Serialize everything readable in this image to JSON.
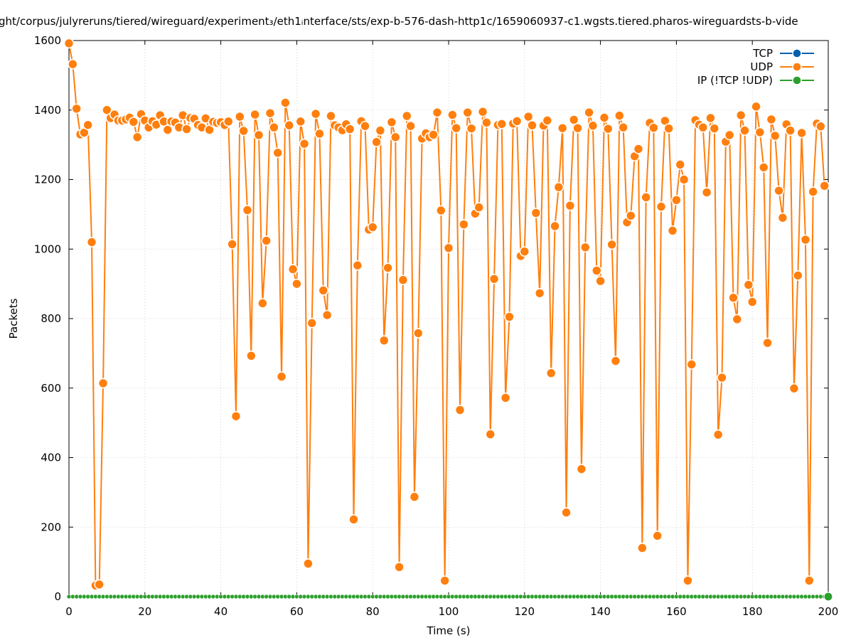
{
  "chart_data": {
    "type": "line",
    "title": "ght/corpus/julyreruns/tiered/wireguard/experiment₃/eth1ᵢnterface/sts/exp-b-576-dash-http1c/1659060937-c1.wgsts.tiered.pharos-wireguardsts-b-vide",
    "xlabel": "Time (s)",
    "ylabel": "Packets",
    "xlim": [
      0,
      200
    ],
    "ylim": [
      0,
      1600
    ],
    "xticks": [
      "0",
      "20",
      "40",
      "60",
      "80",
      "100",
      "120",
      "140",
      "160",
      "180",
      "200"
    ],
    "yticks": [
      "0",
      "200",
      "400",
      "600",
      "800",
      "1000",
      "1200",
      "1400",
      "1600"
    ],
    "grid": true,
    "legend_position": "top-right",
    "series": [
      {
        "name": "TCP",
        "color": "#0060ad",
        "x": [],
        "values": []
      },
      {
        "name": "UDP",
        "color": "#ff7f0e",
        "x": [
          0,
          1,
          2,
          3,
          4,
          5,
          6,
          7,
          8,
          9,
          10,
          11,
          12,
          13,
          14,
          15,
          16,
          17,
          18,
          19,
          20,
          21,
          22,
          23,
          24,
          25,
          26,
          27,
          28,
          29,
          30,
          31,
          32,
          33,
          34,
          35,
          36,
          37,
          38,
          39,
          40,
          41,
          42,
          43,
          44,
          45,
          46,
          47,
          48,
          49,
          50,
          51,
          52,
          53,
          54,
          55,
          56,
          57,
          58,
          59,
          60,
          61,
          62,
          63,
          64,
          65,
          66,
          67,
          68,
          69,
          70,
          71,
          72,
          73,
          74,
          75,
          76,
          77,
          78,
          79,
          80,
          81,
          82,
          83,
          84,
          85,
          86,
          87,
          88,
          89,
          90,
          91,
          92,
          93,
          94,
          95,
          96,
          97,
          98,
          99,
          100,
          101,
          102,
          103,
          104,
          105,
          106,
          107,
          108,
          109,
          110,
          111,
          112,
          113,
          114,
          115,
          116,
          117,
          118,
          119,
          120,
          121,
          122,
          123,
          124,
          125,
          126,
          127,
          128,
          129,
          130,
          131,
          132,
          133,
          134,
          135,
          136,
          137,
          138,
          139,
          140,
          141,
          142,
          143,
          144,
          145,
          146,
          147,
          148,
          149,
          150,
          151,
          152,
          153,
          154,
          155,
          156,
          157,
          158,
          159,
          160,
          161,
          162,
          163,
          164,
          165,
          166,
          167,
          168,
          169,
          170,
          171,
          172,
          173,
          174,
          175,
          176,
          177,
          178,
          179,
          180,
          181,
          182,
          183,
          184,
          185,
          186,
          187,
          188,
          189,
          190,
          191,
          192,
          193,
          194,
          195,
          196,
          197,
          198,
          199
        ],
        "values": [
          1592,
          1532,
          1404,
          1330,
          1335,
          1357,
          1020,
          32,
          35,
          614,
          1400,
          1377,
          1387,
          1370,
          1370,
          1373,
          1378,
          1366,
          1322,
          1388,
          1370,
          1350,
          1368,
          1358,
          1385,
          1367,
          1343,
          1367,
          1364,
          1350,
          1385,
          1345,
          1377,
          1375,
          1357,
          1350,
          1376,
          1343,
          1366,
          1363,
          1365,
          1357,
          1367,
          1014,
          519,
          1381,
          1340,
          1112,
          693,
          1387,
          1328,
          844,
          1024,
          1391,
          1350,
          1277,
          633,
          1421,
          1356,
          942,
          900,
          1367,
          1303,
          95,
          787,
          1389,
          1332,
          881,
          810,
          1383,
          1356,
          1350,
          1342,
          1359,
          1345,
          222,
          953,
          1368,
          1354,
          1056,
          1063,
          1308,
          1341,
          737,
          946,
          1365,
          1322,
          85,
          911,
          1383,
          1354,
          287,
          758,
          1318,
          1333,
          1322,
          1329,
          1393,
          1111,
          46,
          1003,
          1386,
          1348,
          537,
          1071,
          1393,
          1347,
          1102,
          1120,
          1395,
          1364,
          467,
          914,
          1357,
          1360,
          572,
          805,
          1361,
          1368,
          980,
          993,
          1381,
          1356,
          1104,
          873,
          1355,
          1370,
          643,
          1066,
          1178,
          1348,
          242,
          1125,
          1372,
          1348,
          367,
          1005,
          1393,
          1355,
          938,
          908,
          1378,
          1346,
          1013,
          678,
          1384,
          1350,
          1077,
          1096,
          1267,
          1288,
          140,
          1149,
          1363,
          1349,
          175,
          1122,
          1369,
          1347,
          1053,
          1141,
          1243,
          1200,
          46,
          668,
          1371,
          1358,
          1350,
          1163,
          1377,
          1347,
          466,
          630,
          1309,
          1328,
          860,
          798,
          1385,
          1341,
          897,
          848,
          1410,
          1336,
          1235,
          730,
          1373,
          1326,
          1168,
          1090,
          1359,
          1341,
          599,
          924,
          1334,
          1027,
          46,
          1165,
          1361,
          1353,
          1182
        ]
      },
      {
        "name": "IP (!TCP  !UDP)",
        "color": "#2ca02c",
        "x": [
          0,
          1,
          2,
          3,
          4,
          5,
          6,
          7,
          8,
          9,
          10,
          11,
          12,
          13,
          14,
          15,
          16,
          17,
          18,
          19,
          20,
          21,
          22,
          23,
          24,
          25,
          26,
          27,
          28,
          29,
          30,
          31,
          32,
          33,
          34,
          35,
          36,
          37,
          38,
          39,
          40,
          41,
          42,
          43,
          44,
          45,
          46,
          47,
          48,
          49,
          50,
          51,
          52,
          53,
          54,
          55,
          56,
          57,
          58,
          59,
          60,
          61,
          62,
          63,
          64,
          65,
          66,
          67,
          68,
          69,
          70,
          71,
          72,
          73,
          74,
          75,
          76,
          77,
          78,
          79,
          80,
          81,
          82,
          83,
          84,
          85,
          86,
          87,
          88,
          89,
          90,
          91,
          92,
          93,
          94,
          95,
          96,
          97,
          98,
          99,
          100,
          101,
          102,
          103,
          104,
          105,
          106,
          107,
          108,
          109,
          110,
          111,
          112,
          113,
          114,
          115,
          116,
          117,
          118,
          119,
          120,
          121,
          122,
          123,
          124,
          125,
          126,
          127,
          128,
          129,
          130,
          131,
          132,
          133,
          134,
          135,
          136,
          137,
          138,
          139,
          140,
          141,
          142,
          143,
          144,
          145,
          146,
          147,
          148,
          149,
          150,
          151,
          152,
          153,
          154,
          155,
          156,
          157,
          158,
          159,
          160,
          161,
          162,
          163,
          164,
          165,
          166,
          167,
          168,
          169,
          170,
          171,
          172,
          173,
          174,
          175,
          176,
          177,
          178,
          179,
          180,
          181,
          182,
          183,
          184,
          185,
          186,
          187,
          188,
          189,
          190,
          191,
          192,
          193,
          194,
          195,
          196,
          197,
          198,
          199
        ],
        "values": [
          0,
          0,
          0,
          0,
          0,
          0,
          0,
          0,
          0,
          0,
          0,
          0,
          0,
          0,
          0,
          0,
          0,
          0,
          0,
          0,
          0,
          0,
          0,
          0,
          0,
          0,
          0,
          0,
          0,
          0,
          0,
          0,
          0,
          0,
          0,
          0,
          0,
          0,
          0,
          0,
          0,
          0,
          0,
          0,
          0,
          0,
          0,
          0,
          0,
          0,
          0,
          0,
          0,
          0,
          0,
          0,
          0,
          0,
          0,
          0,
          0,
          0,
          0,
          0,
          0,
          0,
          0,
          0,
          0,
          0,
          0,
          0,
          0,
          0,
          0,
          0,
          0,
          0,
          0,
          0,
          0,
          0,
          0,
          0,
          0,
          0,
          0,
          0,
          0,
          0,
          0,
          0,
          0,
          0,
          0,
          0,
          0,
          0,
          0,
          0,
          0,
          0,
          0,
          0,
          0,
          0,
          0,
          0,
          0,
          0,
          0,
          0,
          0,
          0,
          0,
          0,
          0,
          0,
          0,
          0,
          0,
          0,
          0,
          0,
          0,
          0,
          0,
          0,
          0,
          0,
          0,
          0,
          0,
          0,
          0,
          0,
          0,
          0,
          0,
          0,
          0,
          0,
          0,
          0,
          0,
          0,
          0,
          0,
          0,
          0,
          0,
          0,
          0,
          0,
          0,
          0,
          0,
          0,
          0,
          0,
          0,
          0,
          0,
          0,
          0,
          0,
          0,
          0,
          0,
          0,
          0,
          0,
          0,
          0,
          0,
          0,
          0,
          0,
          0,
          0,
          0,
          0,
          0,
          0,
          0,
          0,
          0,
          0,
          0,
          0,
          0,
          0,
          0,
          0,
          0,
          0,
          0,
          0,
          0,
          0
        ]
      }
    ]
  }
}
